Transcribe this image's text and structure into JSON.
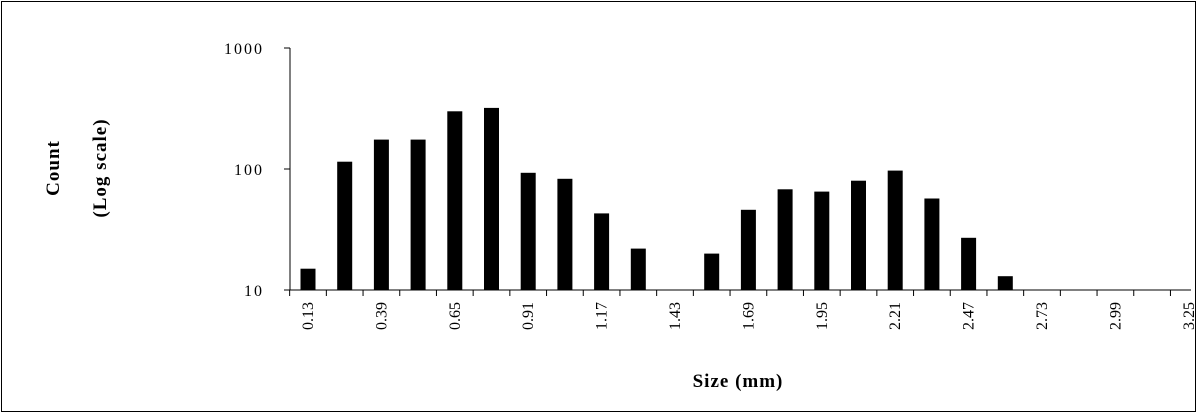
{
  "chart_data": {
    "type": "bar",
    "title": "",
    "xlabel": "Size (mm)",
    "ylabel": "Count",
    "ylabel_sub": "(Log scale)",
    "y_scale": "log",
    "ylim": [
      10,
      1000
    ],
    "y_ticks": [
      "10",
      "100",
      "1000"
    ],
    "x_tick_labels": [
      "0.13",
      "0.39",
      "0.65",
      "0.91",
      "1.17",
      "1.43",
      "1.69",
      "1.95",
      "2.21",
      "2.47",
      "2.73",
      "2.99",
      "3.25"
    ],
    "categories": [
      "0.13",
      "0.26",
      "0.39",
      "0.52",
      "0.65",
      "0.78",
      "0.91",
      "1.04",
      "1.17",
      "1.30",
      "1.43",
      "1.56",
      "1.69",
      "1.82",
      "1.95",
      "2.08",
      "2.21",
      "2.34",
      "2.47",
      "2.60",
      "2.73",
      "2.86",
      "2.99",
      "3.12",
      "3.25"
    ],
    "values": [
      15,
      115,
      175,
      175,
      300,
      320,
      93,
      83,
      43,
      22,
      null,
      20,
      46,
      68,
      65,
      80,
      97,
      57,
      27,
      13,
      null,
      null,
      null,
      null,
      null
    ],
    "bar_color": "#000000",
    "grid": false,
    "legend": "none"
  }
}
